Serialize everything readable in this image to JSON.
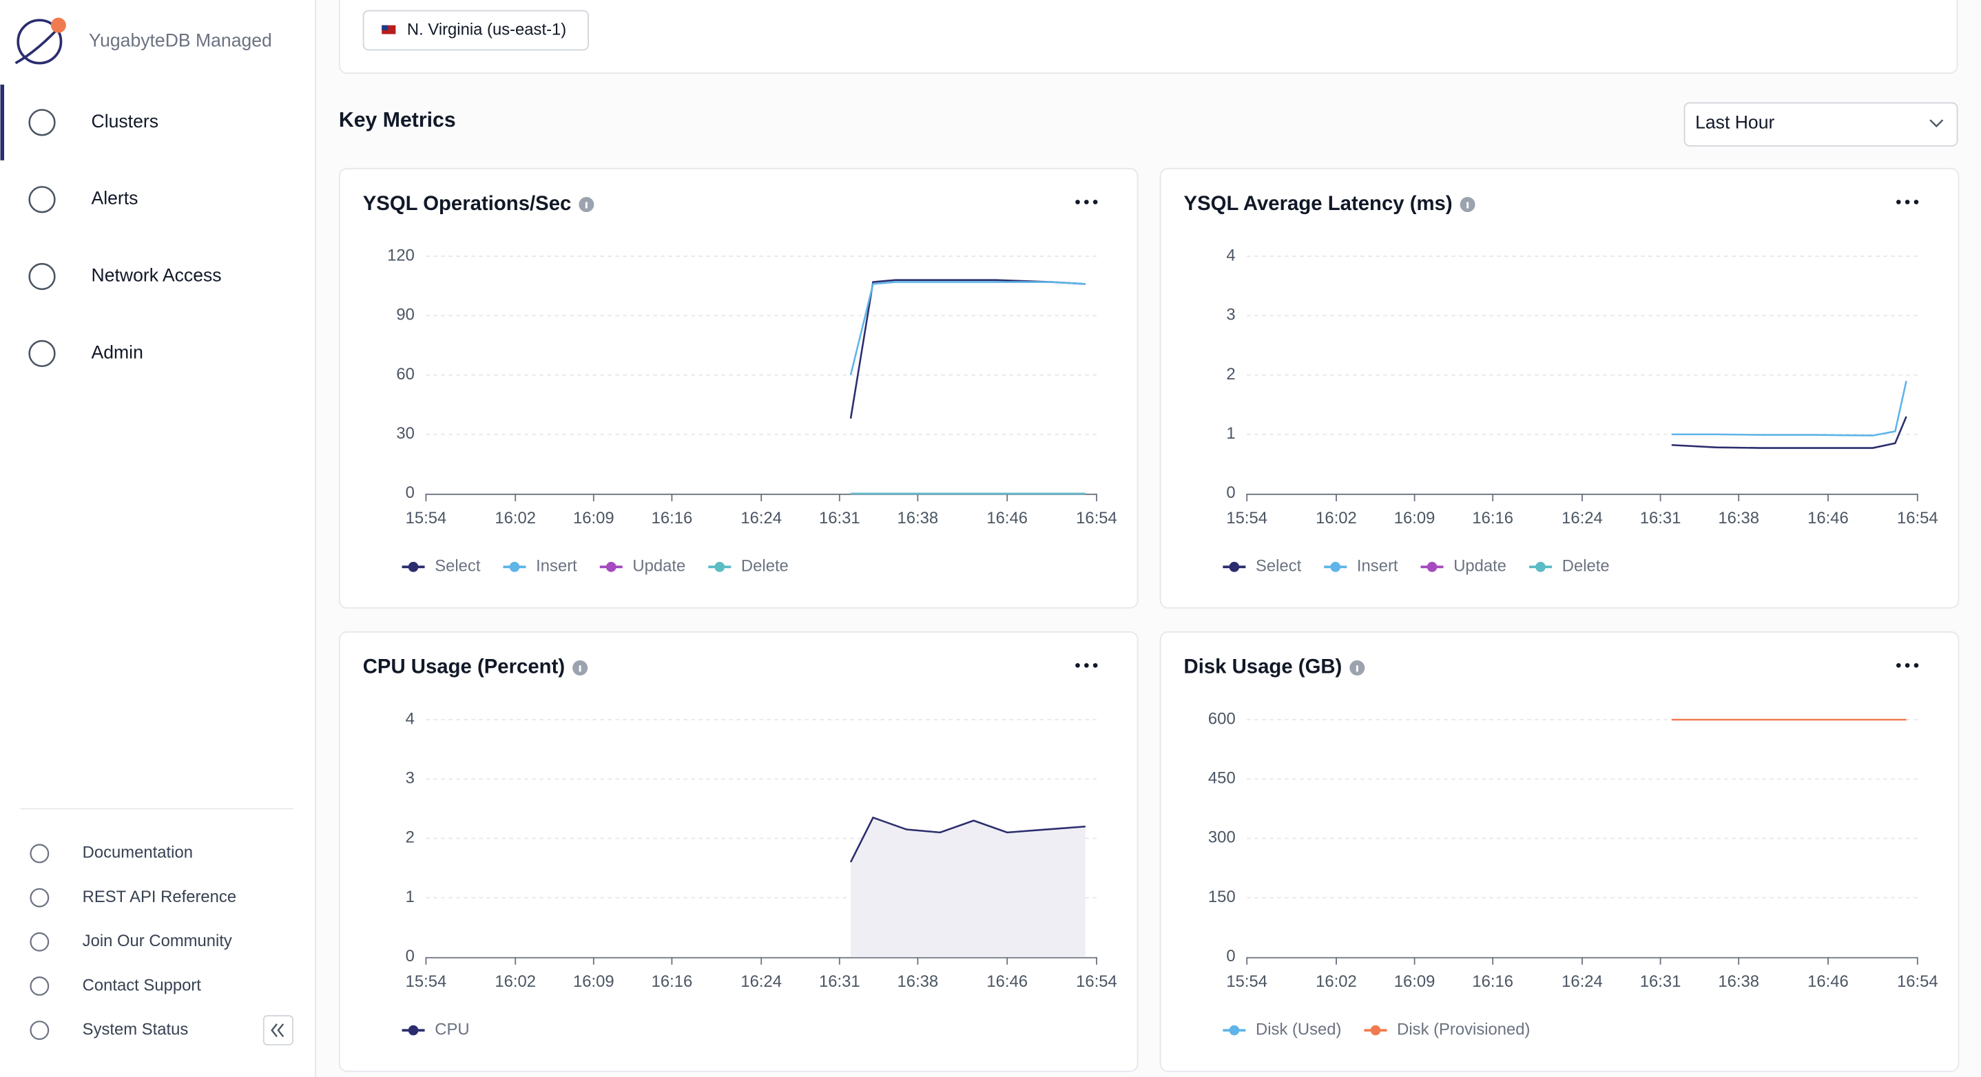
{
  "sidebar": {
    "brand": "YugabyteDB Managed",
    "nav": [
      "Clusters",
      "Alerts",
      "Network Access",
      "Admin"
    ],
    "footer": [
      "Documentation",
      "REST API Reference",
      "Join Our Community",
      "Contact Support",
      "System Status"
    ]
  },
  "region": "N. Virginia (us-east-1)",
  "section_title": "Key Metrics",
  "time_range": "Last Hour",
  "chart_data": [
    {
      "type": "line",
      "title": "YSQL Operations/Sec",
      "x": [
        "16:32",
        "16:34",
        "16:36",
        "16:40",
        "16:45",
        "16:50",
        "16:53"
      ],
      "xlim": [
        "15:54",
        "16:54"
      ],
      "xticks": [
        "15:54",
        "16:02",
        "16:09",
        "16:16",
        "16:24",
        "16:31",
        "16:38",
        "16:46",
        "16:54"
      ],
      "ylim": [
        0,
        120
      ],
      "yticks": [
        0,
        30,
        60,
        90,
        120
      ],
      "grid": true,
      "series": [
        {
          "name": "Select",
          "color": "#2b2d6e",
          "values": [
            38,
            107,
            108,
            108,
            108,
            107,
            106
          ]
        },
        {
          "name": "Insert",
          "color": "#5fb4e8",
          "values": [
            60,
            106,
            107,
            107,
            107,
            107,
            106
          ]
        },
        {
          "name": "Update",
          "color": "#a64bbf",
          "values": [
            0,
            0,
            0,
            0,
            0,
            0,
            0
          ]
        },
        {
          "name": "Delete",
          "color": "#5bbcc4",
          "values": [
            0,
            0,
            0,
            0,
            0,
            0,
            0
          ]
        }
      ]
    },
    {
      "type": "line",
      "title": "YSQL Average Latency (ms)",
      "x": [
        "16:32",
        "16:36",
        "16:40",
        "16:45",
        "16:50",
        "16:52",
        "16:53"
      ],
      "xlim": [
        "15:54",
        "16:54"
      ],
      "xticks": [
        "15:54",
        "16:02",
        "16:09",
        "16:16",
        "16:24",
        "16:31",
        "16:38",
        "16:46",
        "16:54"
      ],
      "ylim": [
        0,
        4
      ],
      "yticks": [
        0,
        1,
        2,
        3,
        4
      ],
      "grid": true,
      "series": [
        {
          "name": "Select",
          "color": "#2b2d6e",
          "values": [
            0.82,
            0.78,
            0.77,
            0.77,
            0.77,
            0.85,
            1.3
          ]
        },
        {
          "name": "Insert",
          "color": "#5fb4e8",
          "values": [
            1.0,
            1.0,
            0.99,
            0.99,
            0.98,
            1.05,
            1.9
          ]
        },
        {
          "name": "Update",
          "color": "#a64bbf",
          "values": [
            null,
            null,
            null,
            null,
            null,
            null,
            null
          ]
        },
        {
          "name": "Delete",
          "color": "#5bbcc4",
          "values": [
            null,
            null,
            null,
            null,
            null,
            null,
            null
          ]
        }
      ]
    },
    {
      "type": "area",
      "title": "CPU Usage (Percent)",
      "x": [
        "16:32",
        "16:34",
        "16:37",
        "16:40",
        "16:43",
        "16:46",
        "16:53"
      ],
      "xlim": [
        "15:54",
        "16:54"
      ],
      "xticks": [
        "15:54",
        "16:02",
        "16:09",
        "16:16",
        "16:24",
        "16:31",
        "16:38",
        "16:46",
        "16:54"
      ],
      "ylim": [
        0,
        4
      ],
      "yticks": [
        0,
        1,
        2,
        3,
        4
      ],
      "grid": true,
      "series": [
        {
          "name": "CPU",
          "color": "#2b2d6e",
          "values": [
            1.6,
            2.35,
            2.15,
            2.1,
            2.3,
            2.1,
            2.2
          ]
        }
      ]
    },
    {
      "type": "line",
      "title": "Disk Usage (GB)",
      "x": [
        "16:32",
        "16:40",
        "16:46",
        "16:53"
      ],
      "xlim": [
        "15:54",
        "16:54"
      ],
      "xticks": [
        "15:54",
        "16:02",
        "16:09",
        "16:16",
        "16:24",
        "16:31",
        "16:38",
        "16:46",
        "16:54"
      ],
      "ylim": [
        0,
        600
      ],
      "yticks": [
        0,
        150,
        300,
        450,
        600
      ],
      "grid": true,
      "series": [
        {
          "name": "Disk (Used)",
          "color": "#5fb4e8",
          "values": [
            null,
            null,
            null,
            null
          ]
        },
        {
          "name": "Disk (Provisioned)",
          "color": "#f07b50",
          "values": [
            600,
            600,
            600,
            600
          ]
        }
      ]
    }
  ]
}
